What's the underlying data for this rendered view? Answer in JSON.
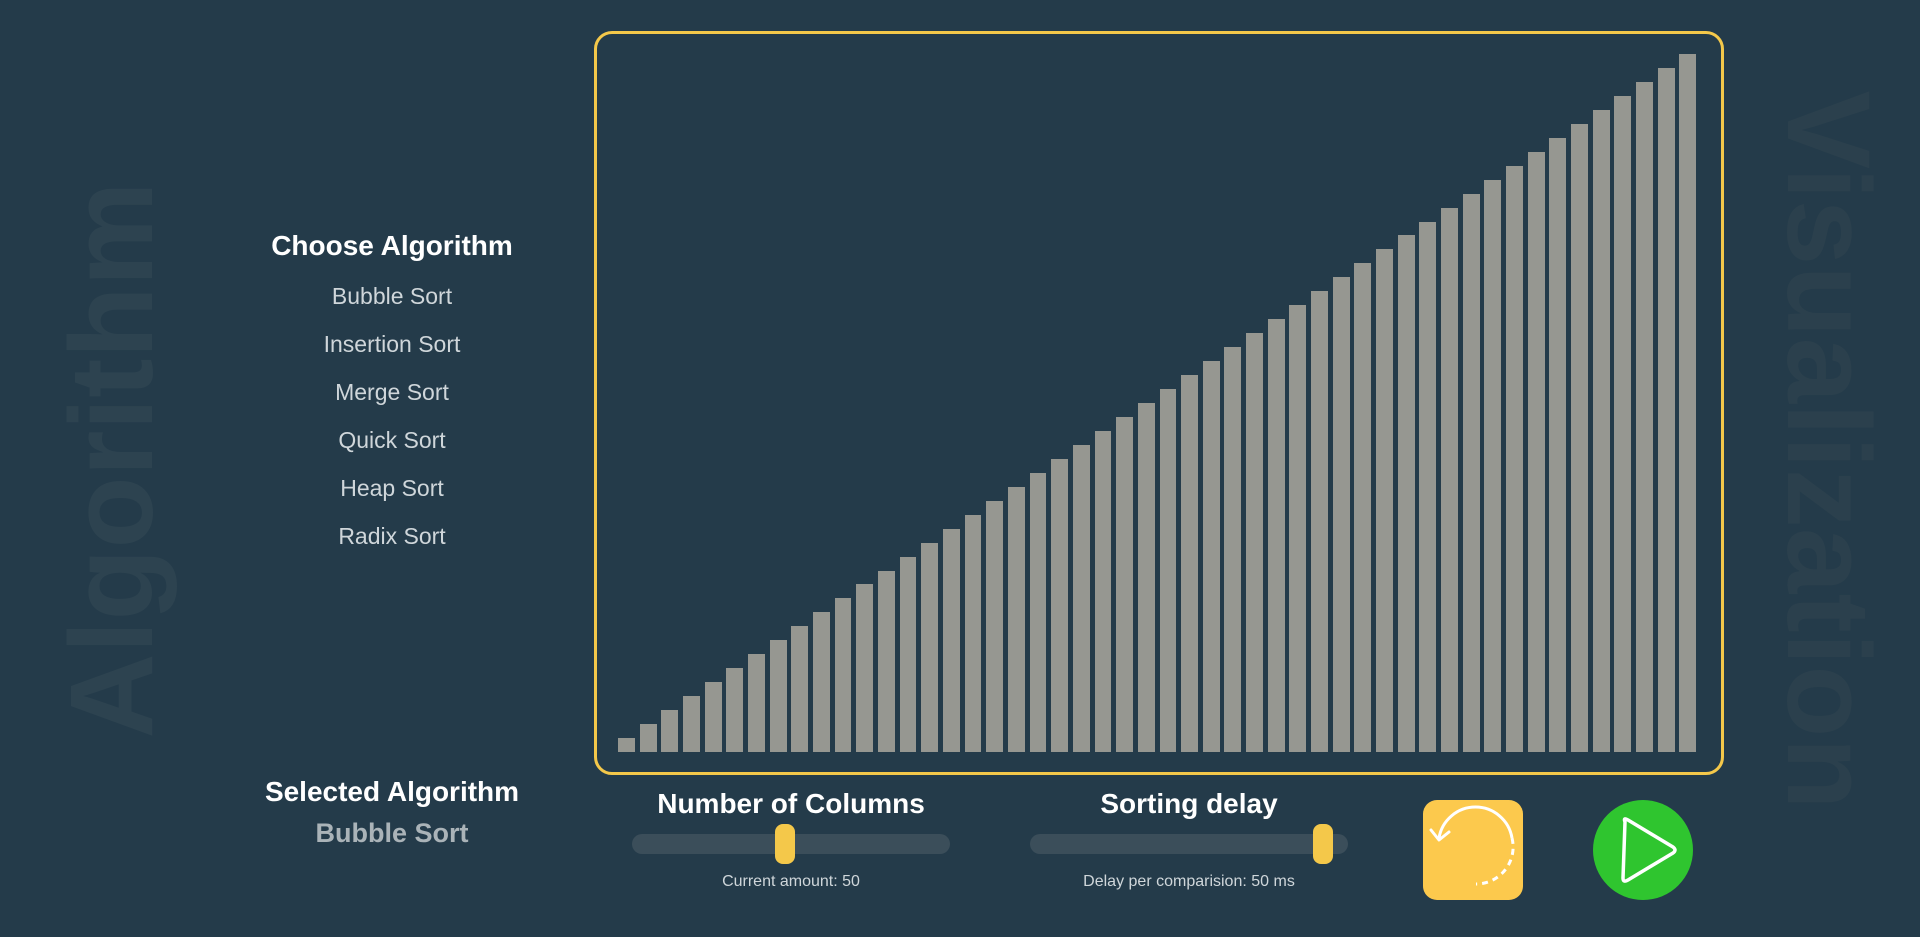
{
  "watermarks": {
    "left": "Algorithm",
    "right": "Visualization"
  },
  "sidebar": {
    "title": "Choose Algorithm",
    "items": [
      {
        "label": "Bubble Sort"
      },
      {
        "label": "Insertion Sort"
      },
      {
        "label": "Merge Sort"
      },
      {
        "label": "Quick Sort"
      },
      {
        "label": "Heap Sort"
      },
      {
        "label": "Radix Sort"
      }
    ]
  },
  "selected": {
    "title": "Selected Algorithm",
    "value": "Bubble Sort"
  },
  "controls": {
    "columns": {
      "title": "Number of Columns",
      "caption": "Current amount: 50",
      "value": 50,
      "slider_fraction": 0.48
    },
    "delay": {
      "title": "Sorting delay",
      "caption": "Delay per comparision: 50 ms",
      "value": 50,
      "slider_fraction": 0.92
    }
  },
  "buttons": {
    "reset_icon": "reset-icon",
    "play_icon": "play-icon"
  },
  "colors": {
    "background": "#243b4a",
    "accent": "#f4c84a",
    "bar": "#969791",
    "play": "#2fc52f",
    "reset": "#fcc94d"
  },
  "chart_data": {
    "type": "bar",
    "values": [
      1,
      2,
      3,
      4,
      5,
      6,
      7,
      8,
      9,
      10,
      11,
      12,
      13,
      14,
      15,
      16,
      17,
      18,
      19,
      20,
      21,
      22,
      23,
      24,
      25,
      26,
      27,
      28,
      29,
      30,
      31,
      32,
      33,
      34,
      35,
      36,
      37,
      38,
      39,
      40,
      41,
      42,
      43,
      44,
      45,
      46,
      47,
      48,
      49,
      50
    ],
    "ylim": [
      0,
      50
    ]
  }
}
